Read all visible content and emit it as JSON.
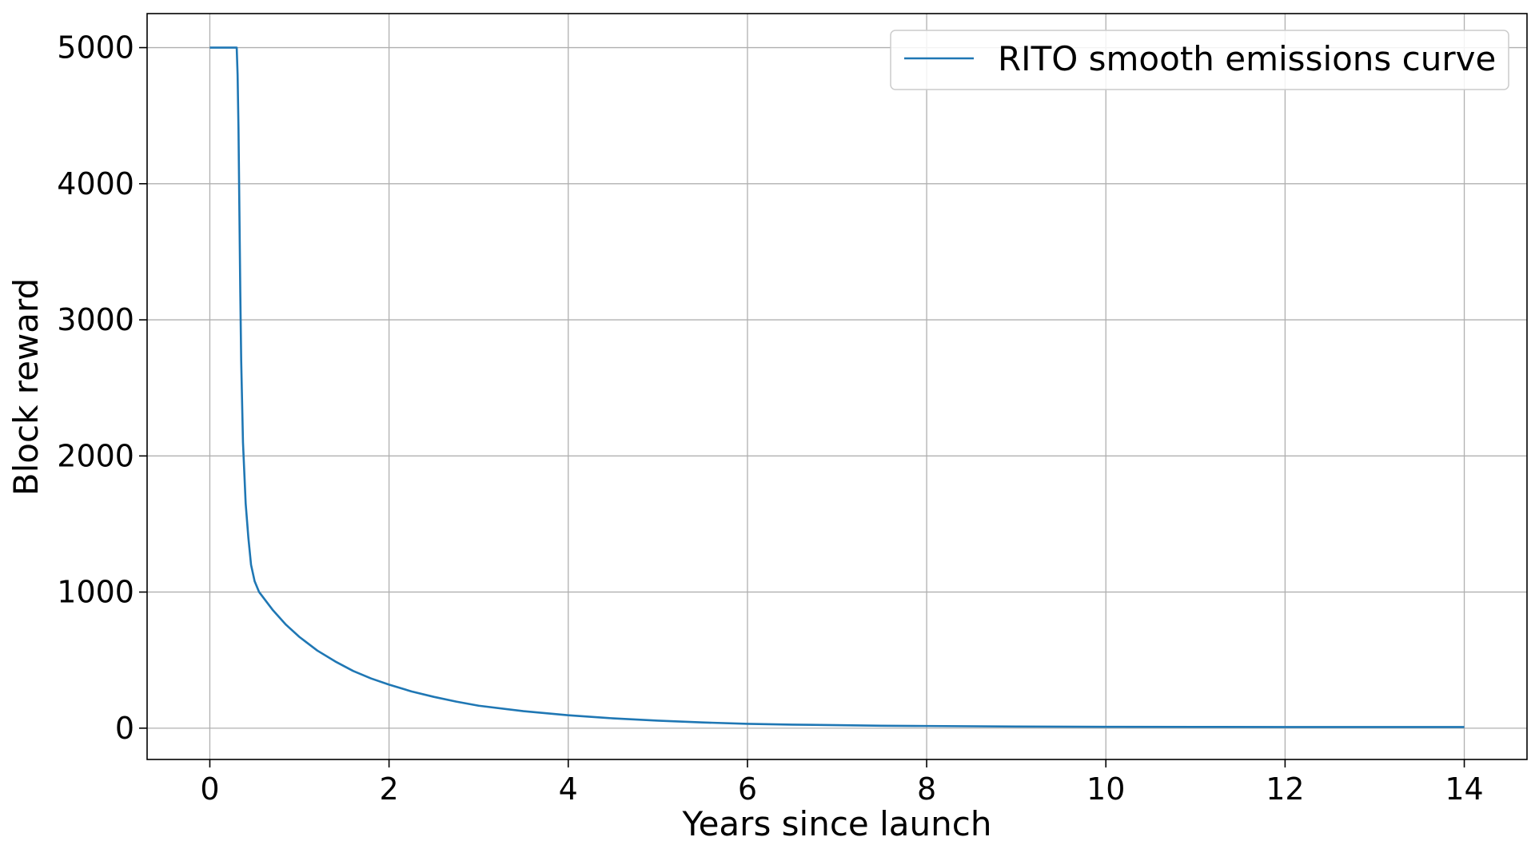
{
  "chart_data": {
    "type": "line",
    "xlabel": "Years since launch",
    "ylabel": "Block reward",
    "xlim": [
      -0.7,
      14.7
    ],
    "ylim": [
      -230,
      5250
    ],
    "xticks": [
      0,
      2,
      4,
      6,
      8,
      10,
      12,
      14
    ],
    "yticks": [
      0,
      1000,
      2000,
      3000,
      4000,
      5000
    ],
    "xtick_labels": [
      "0",
      "2",
      "4",
      "6",
      "8",
      "10",
      "12",
      "14"
    ],
    "ytick_labels": [
      "0",
      "1000",
      "2000",
      "3000",
      "4000",
      "5000"
    ],
    "grid": true,
    "legend_position": "top-right",
    "series": [
      {
        "name": "RITO smooth emissions curve",
        "color": "#1f77b4",
        "x": [
          0,
          0.3,
          0.31,
          0.32,
          0.33,
          0.34,
          0.35,
          0.37,
          0.4,
          0.43,
          0.46,
          0.5,
          0.55,
          0.7,
          0.85,
          1.0,
          1.2,
          1.4,
          1.6,
          1.8,
          2.0,
          2.25,
          2.5,
          2.75,
          3.0,
          3.5,
          4.0,
          4.5,
          5.0,
          5.5,
          6.0,
          6.5,
          7.0,
          7.5,
          8.0,
          9.0,
          10.0,
          11.0,
          12.0,
          13.0,
          14.0
        ],
        "y": [
          5000,
          5000,
          4800,
          4400,
          3800,
          3200,
          2700,
          2100,
          1650,
          1400,
          1200,
          1080,
          1000,
          870,
          760,
          670,
          570,
          490,
          420,
          365,
          320,
          270,
          230,
          195,
          165,
          125,
          95,
          72,
          55,
          42,
          32,
          26,
          22,
          18,
          16,
          12,
          10,
          9,
          8,
          8,
          8
        ]
      }
    ]
  }
}
